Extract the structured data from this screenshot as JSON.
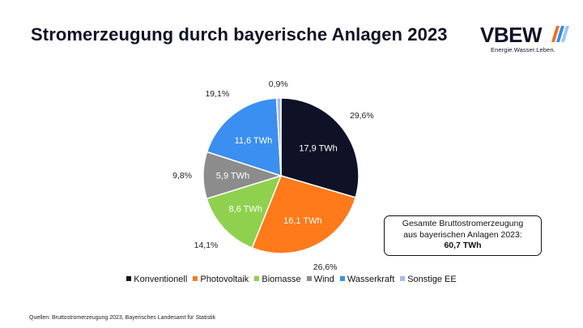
{
  "header": {
    "title": "Stromerzeugung durch bayerische Anlagen 2023"
  },
  "logo": {
    "word": "VBEW",
    "tagline": "Energie.Wasser.Leben.",
    "colors": [
      "#f36f21",
      "#2f8fe8",
      "#9ec7f2"
    ]
  },
  "chart_data": {
    "type": "pie",
    "title": "Stromerzeugung durch bayerische Anlagen 2023",
    "unit": "TWh",
    "start": "12 o'clock",
    "direction": "clockwise",
    "slices": [
      {
        "name": "Konventionell",
        "value": 17.9,
        "value_label": "17,9 TWh",
        "percent_label": "29,6%",
        "color": "#0f1226",
        "text_color": "#ffffff"
      },
      {
        "name": "Photovoltaik",
        "value": 16.1,
        "value_label": "16,1 TWh",
        "percent_label": "26,6%",
        "color": "#ff7a1a",
        "text_color": "#ffffff"
      },
      {
        "name": "Biomasse",
        "value": 8.6,
        "value_label": "8,6 TWh",
        "percent_label": "14,1%",
        "color": "#8fd14f",
        "text_color": "#ffffff"
      },
      {
        "name": "Wind",
        "value": 5.9,
        "value_label": "5,9 TWh",
        "percent_label": "9,8%",
        "color": "#8c8c8c",
        "text_color": "#ffffff"
      },
      {
        "name": "Wasserkraft",
        "value": 11.6,
        "value_label": "11,6 TWh",
        "percent_label": "19,1%",
        "color": "#3b8ff0",
        "text_color": "#ffffff"
      },
      {
        "name": "Sonstige EE",
        "value": 0.55,
        "value_label": "",
        "percent_label": "0,9%",
        "color": "#aab8ec",
        "text_color": "#ffffff"
      }
    ],
    "legend_position": "bottom"
  },
  "total": {
    "line1": "Gesamte Bruttostromerzeugung",
    "line2": "aus bayerischen Anlagen 2023:",
    "value": "60,7 TWh"
  },
  "legend": [
    {
      "label": "Konventionell",
      "color": "#0f1226"
    },
    {
      "label": "Photovoltaik",
      "color": "#ff7a1a"
    },
    {
      "label": "Biomasse",
      "color": "#8fd14f"
    },
    {
      "label": "Wind",
      "color": "#8c8c8c"
    },
    {
      "label": "Wasserkraft",
      "color": "#3b8ff0"
    },
    {
      "label": "Sonstige EE",
      "color": "#aab8ec"
    }
  ],
  "footer": {
    "source": "Quellen: Bruttostromerzeugung 2023, Bayerisches Landesamt für Statistik"
  }
}
